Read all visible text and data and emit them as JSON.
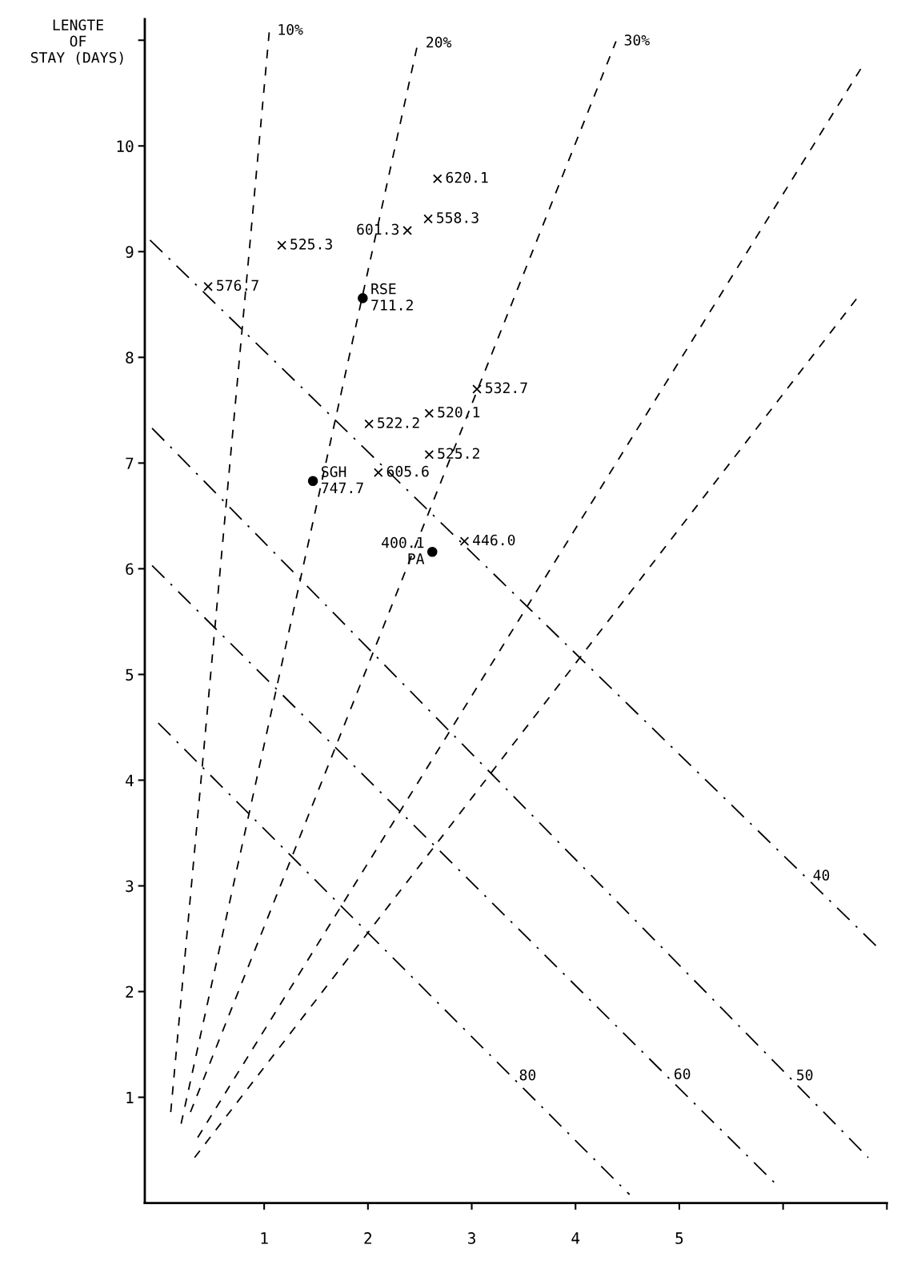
{
  "chart_data": {
    "type": "line",
    "ylabel": "LENGTE\nOF\nSTAY (DAYS)",
    "xlim": [
      -0.15,
      7.0
    ],
    "ylim": [
      0,
      11.2
    ],
    "xticks": [
      1,
      2,
      3,
      4,
      5,
      {
        "value": 6,
        "label": null
      },
      {
        "value": 7,
        "label": null
      }
    ],
    "yticks": [
      1,
      2,
      3,
      4,
      5,
      6,
      7,
      8,
      9,
      10,
      {
        "value": 11,
        "label": null
      }
    ],
    "grid": false,
    "legend": false,
    "series": [
      {
        "line_style": "dashed",
        "color": "#000000",
        "x": [
          0.1,
          1.05
        ],
        "values": [
          0.86,
          11.09
        ]
      },
      {
        "line_style": "dashed",
        "color": "#000000",
        "x": [
          0.2,
          2.48
        ],
        "values": [
          0.75,
          10.97
        ]
      },
      {
        "line_style": "dashed",
        "color": "#000000",
        "x": [
          0.29,
          4.39
        ],
        "values": [
          0.86,
          10.99
        ]
      },
      {
        "line_style": "dashed",
        "color": "#000000",
        "x": [
          0.36,
          6.78
        ],
        "values": [
          0.62,
          10.78
        ]
      },
      {
        "line_style": "dashed",
        "color": "#000000",
        "x": [
          0.33,
          6.72
        ],
        "values": [
          0.43,
          8.57
        ]
      },
      {
        "line_style": "dashdot",
        "color": "#000000",
        "x": [
          -0.1,
          6.21,
          6.93
        ],
        "values": [
          9.11,
          3.09,
          2.4
        ]
      },
      {
        "line_style": "dashdot",
        "color": "#000000",
        "x": [
          -0.08,
          6.05,
          6.82
        ],
        "values": [
          7.33,
          1.2,
          0.43
        ]
      },
      {
        "line_style": "dashdot",
        "color": "#000000",
        "x": [
          -0.08,
          4.87,
          5.96
        ],
        "values": [
          6.03,
          1.21,
          0.15
        ]
      },
      {
        "line_style": "dashdot",
        "color": "#000000",
        "x": [
          -0.02,
          3.38,
          4.52
        ],
        "values": [
          4.54,
          1.2,
          0.08
        ]
      },
      {
        "type": "scatter",
        "marker": "cross",
        "color": "#000000",
        "x": [
          2.67,
          2.58,
          2.38,
          1.17,
          0.46,
          3.05,
          2.59,
          2.01,
          2.59,
          2.1,
          2.93
        ],
        "values": [
          9.69,
          9.31,
          9.2,
          9.06,
          8.67,
          7.7,
          7.47,
          7.37,
          7.08,
          6.91,
          6.26
        ]
      },
      {
        "type": "scatter",
        "marker": "circle",
        "color": "#000000",
        "x": [
          1.95,
          1.47,
          2.62
        ],
        "values": [
          8.56,
          6.83,
          6.16
        ]
      }
    ],
    "annotations": [
      {
        "text": "10%",
        "x": 1.05,
        "y": 11.09
      },
      {
        "text": "20%",
        "x": 2.48,
        "y": 10.97
      },
      {
        "text": "30%",
        "x": 4.39,
        "y": 10.99
      },
      {
        "text": "40",
        "x": 6.21,
        "y": 3.09
      },
      {
        "text": "50",
        "x": 6.05,
        "y": 1.2
      },
      {
        "text": "60",
        "x": 4.87,
        "y": 1.21
      },
      {
        "text": "80",
        "x": 3.38,
        "y": 1.2
      },
      {
        "text": "620.1",
        "x": 2.67,
        "y": 9.69
      },
      {
        "text": "558.3",
        "x": 2.58,
        "y": 9.31
      },
      {
        "text": "601.3",
        "x": 2.38,
        "y": 9.2
      },
      {
        "text": "525.3",
        "x": 1.17,
        "y": 9.06
      },
      {
        "text": "576.7",
        "x": 0.46,
        "y": 8.67
      },
      {
        "text": "532.7",
        "x": 3.05,
        "y": 7.7
      },
      {
        "text": "520.1",
        "x": 2.59,
        "y": 7.47
      },
      {
        "text": "522.2",
        "x": 2.01,
        "y": 7.37
      },
      {
        "text": "525.2",
        "x": 2.59,
        "y": 7.08
      },
      {
        "text": "605.6",
        "x": 2.1,
        "y": 6.91
      },
      {
        "text": "446.0",
        "x": 2.93,
        "y": 6.26
      },
      {
        "text": "RSE\n711.2",
        "x": 1.95,
        "y": 8.56
      },
      {
        "text": "SGH\n747.7",
        "x": 1.47,
        "y": 6.83
      },
      {
        "text": "400.1\nPA",
        "x": 2.62,
        "y": 6.16
      }
    ]
  }
}
